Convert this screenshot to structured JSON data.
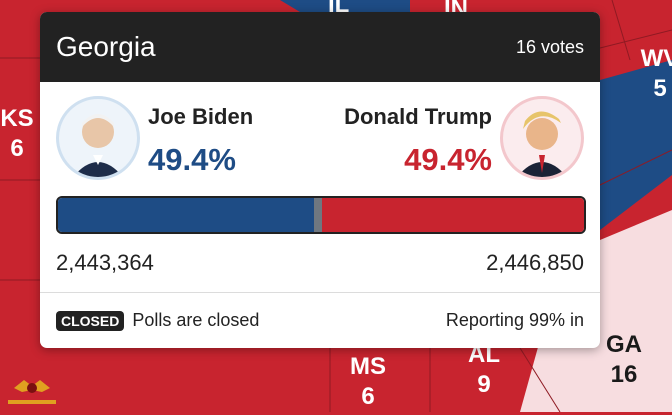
{
  "colors": {
    "dem": "#1e4c85",
    "rep": "#c8242f",
    "divider": "#6f7780",
    "card_head": "#222222"
  },
  "map_labels": [
    {
      "id": "in",
      "state": "IN",
      "votes": ""
    },
    {
      "id": "il",
      "state": "IL",
      "votes": ""
    },
    {
      "id": "ks",
      "state": "KS",
      "votes": "6"
    },
    {
      "id": "wv",
      "state": "WV",
      "votes": "5"
    },
    {
      "id": "ms",
      "state": "MS",
      "votes": "6"
    },
    {
      "id": "al",
      "state": "AL",
      "votes": "9"
    },
    {
      "id": "ga",
      "state": "GA",
      "votes": "16"
    }
  ],
  "popup": {
    "state": "Georgia",
    "electoral_votes": "16 votes",
    "left": {
      "name": "Joe Biden",
      "percent": "49.4%",
      "votes": "2,443,364",
      "color": "dem"
    },
    "right": {
      "name": "Donald Trump",
      "percent": "49.4%",
      "votes": "2,446,850",
      "color": "rep"
    },
    "bar": {
      "left_share": 0.494,
      "right_share": 0.506
    },
    "status_badge": "CLOSED",
    "status_text": "Polls are closed",
    "reporting": "Reporting 99% in"
  }
}
